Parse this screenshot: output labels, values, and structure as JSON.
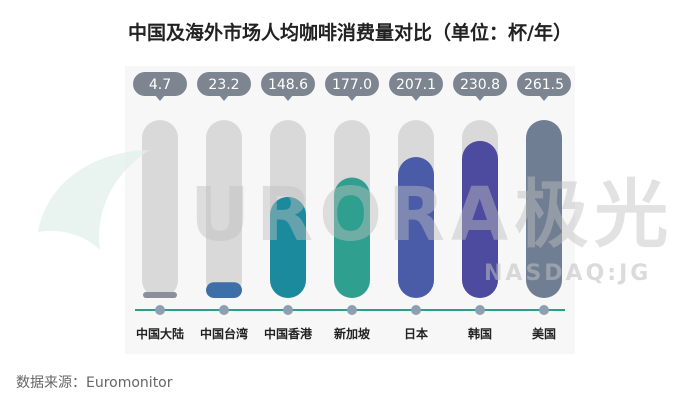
{
  "title": "中国及海外市场人均咖啡消费量对比（单位：杯/年）",
  "source": "数据来源：Euromonitor",
  "watermark": {
    "brand": "URORA极光",
    "sub": "NASDAQ:JG"
  },
  "chart_data": {
    "type": "bar",
    "title": "中国及海外市场人均咖啡消费量对比（单位：杯/年）",
    "categories": [
      "中国大陆",
      "中国台湾",
      "中国香港",
      "新加坡",
      "日本",
      "韩国",
      "美国"
    ],
    "values": [
      4.7,
      23.2,
      148.6,
      177.0,
      207.1,
      230.8,
      261.5
    ],
    "value_labels": [
      "4.7",
      "23.2",
      "148.6",
      "177.0",
      "207.1",
      "230.8",
      "261.5"
    ],
    "ylim": [
      0,
      261.5
    ],
    "grid": false,
    "legend": "none",
    "colors": [
      "#8a8f9c",
      "#3e6fa8",
      "#1b8a9c",
      "#2f9f8f",
      "#4a5ca8",
      "#4d4ba0",
      "#6f7e92"
    ],
    "badge_color": "#7d8591",
    "track_color": "#d9d9d9",
    "axis_color": "#2e9c86"
  }
}
